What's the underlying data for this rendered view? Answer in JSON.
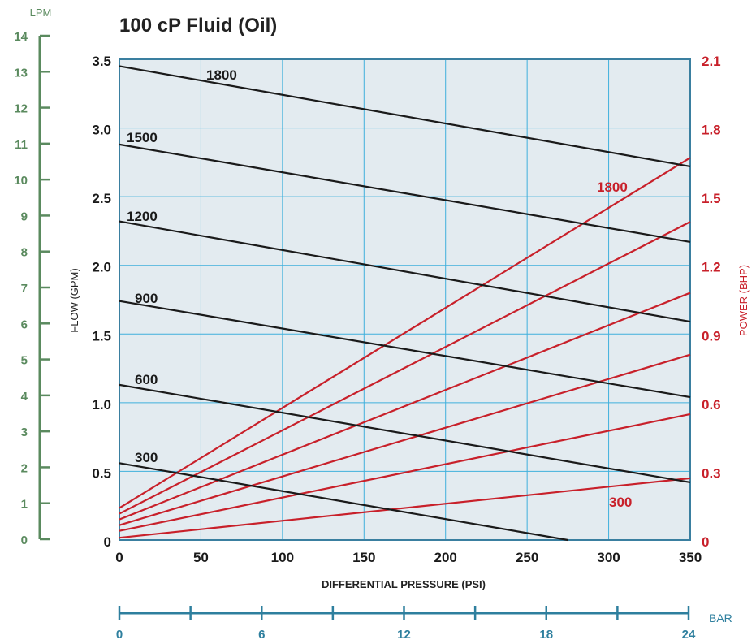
{
  "chart_data": {
    "type": "line",
    "title": "100 cP Fluid (Oil)",
    "xlabel": "DIFFERENTIAL PRESSURE  (PSI)",
    "ylabel_left": "FLOW  (GPM)",
    "ylabel_right": "POWER  (BHP)",
    "xlim": [
      0,
      350
    ],
    "ylim_left": [
      0,
      3.5
    ],
    "ylim_right": [
      0,
      2.1
    ],
    "x_ticks": [
      "0",
      "50",
      "100",
      "150",
      "200",
      "250",
      "300",
      "350"
    ],
    "y_ticks_left": [
      "0",
      "0.5",
      "1.0",
      "1.5",
      "2.0",
      "2.5",
      "3.0",
      "3.5"
    ],
    "y_ticks_right": [
      "0",
      "0.3",
      "0.6",
      "0.9",
      "1.2",
      "1.5",
      "1.8",
      "2.1"
    ],
    "grid": true,
    "lpm_axis": {
      "label": "LPM",
      "range": [
        0,
        14
      ],
      "ticks": [
        "0",
        "1",
        "2",
        "3",
        "4",
        "5",
        "6",
        "7",
        "8",
        "9",
        "10",
        "11",
        "12",
        "13",
        "14"
      ]
    },
    "bar_axis": {
      "label": "BAR",
      "range": [
        0,
        24
      ],
      "tick_labels": [
        "0",
        "6",
        "12",
        "18",
        "24"
      ]
    },
    "flow_series": [
      {
        "name": "1800",
        "x": [
          0,
          350
        ],
        "y": [
          3.45,
          2.72
        ]
      },
      {
        "name": "1500",
        "x": [
          0,
          350
        ],
        "y": [
          2.88,
          2.17
        ]
      },
      {
        "name": "1200",
        "x": [
          0,
          350
        ],
        "y": [
          2.32,
          1.59
        ]
      },
      {
        "name": "900",
        "x": [
          0,
          350
        ],
        "y": [
          1.74,
          1.04
        ]
      },
      {
        "name": "600",
        "x": [
          0,
          350
        ],
        "y": [
          1.13,
          0.42
        ]
      },
      {
        "name": "300",
        "x": [
          0,
          275
        ],
        "y": [
          0.56,
          0.0
        ]
      }
    ],
    "power_series": [
      {
        "name": "1800",
        "x": [
          0,
          350
        ],
        "y": [
          0.14,
          1.67
        ]
      },
      {
        "name": "",
        "x": [
          0,
          350
        ],
        "y": [
          0.115,
          1.39
        ]
      },
      {
        "name": "",
        "x": [
          0,
          350
        ],
        "y": [
          0.09,
          1.08
        ]
      },
      {
        "name": "",
        "x": [
          0,
          350
        ],
        "y": [
          0.065,
          0.81
        ]
      },
      {
        "name": "",
        "x": [
          0,
          350
        ],
        "y": [
          0.04,
          0.55
        ]
      },
      {
        "name": "300",
        "x": [
          0,
          350
        ],
        "y": [
          0.01,
          0.27
        ]
      }
    ],
    "colors": {
      "flow": "#1a1a1a",
      "power": "#c8202a",
      "grid": "#3fb0dc",
      "plot_bg": "#e3ebf0",
      "plot_border": "#3a7fa0",
      "lpm_axis": "#5a8a5e",
      "bar_axis": "#2e7f9e"
    }
  }
}
